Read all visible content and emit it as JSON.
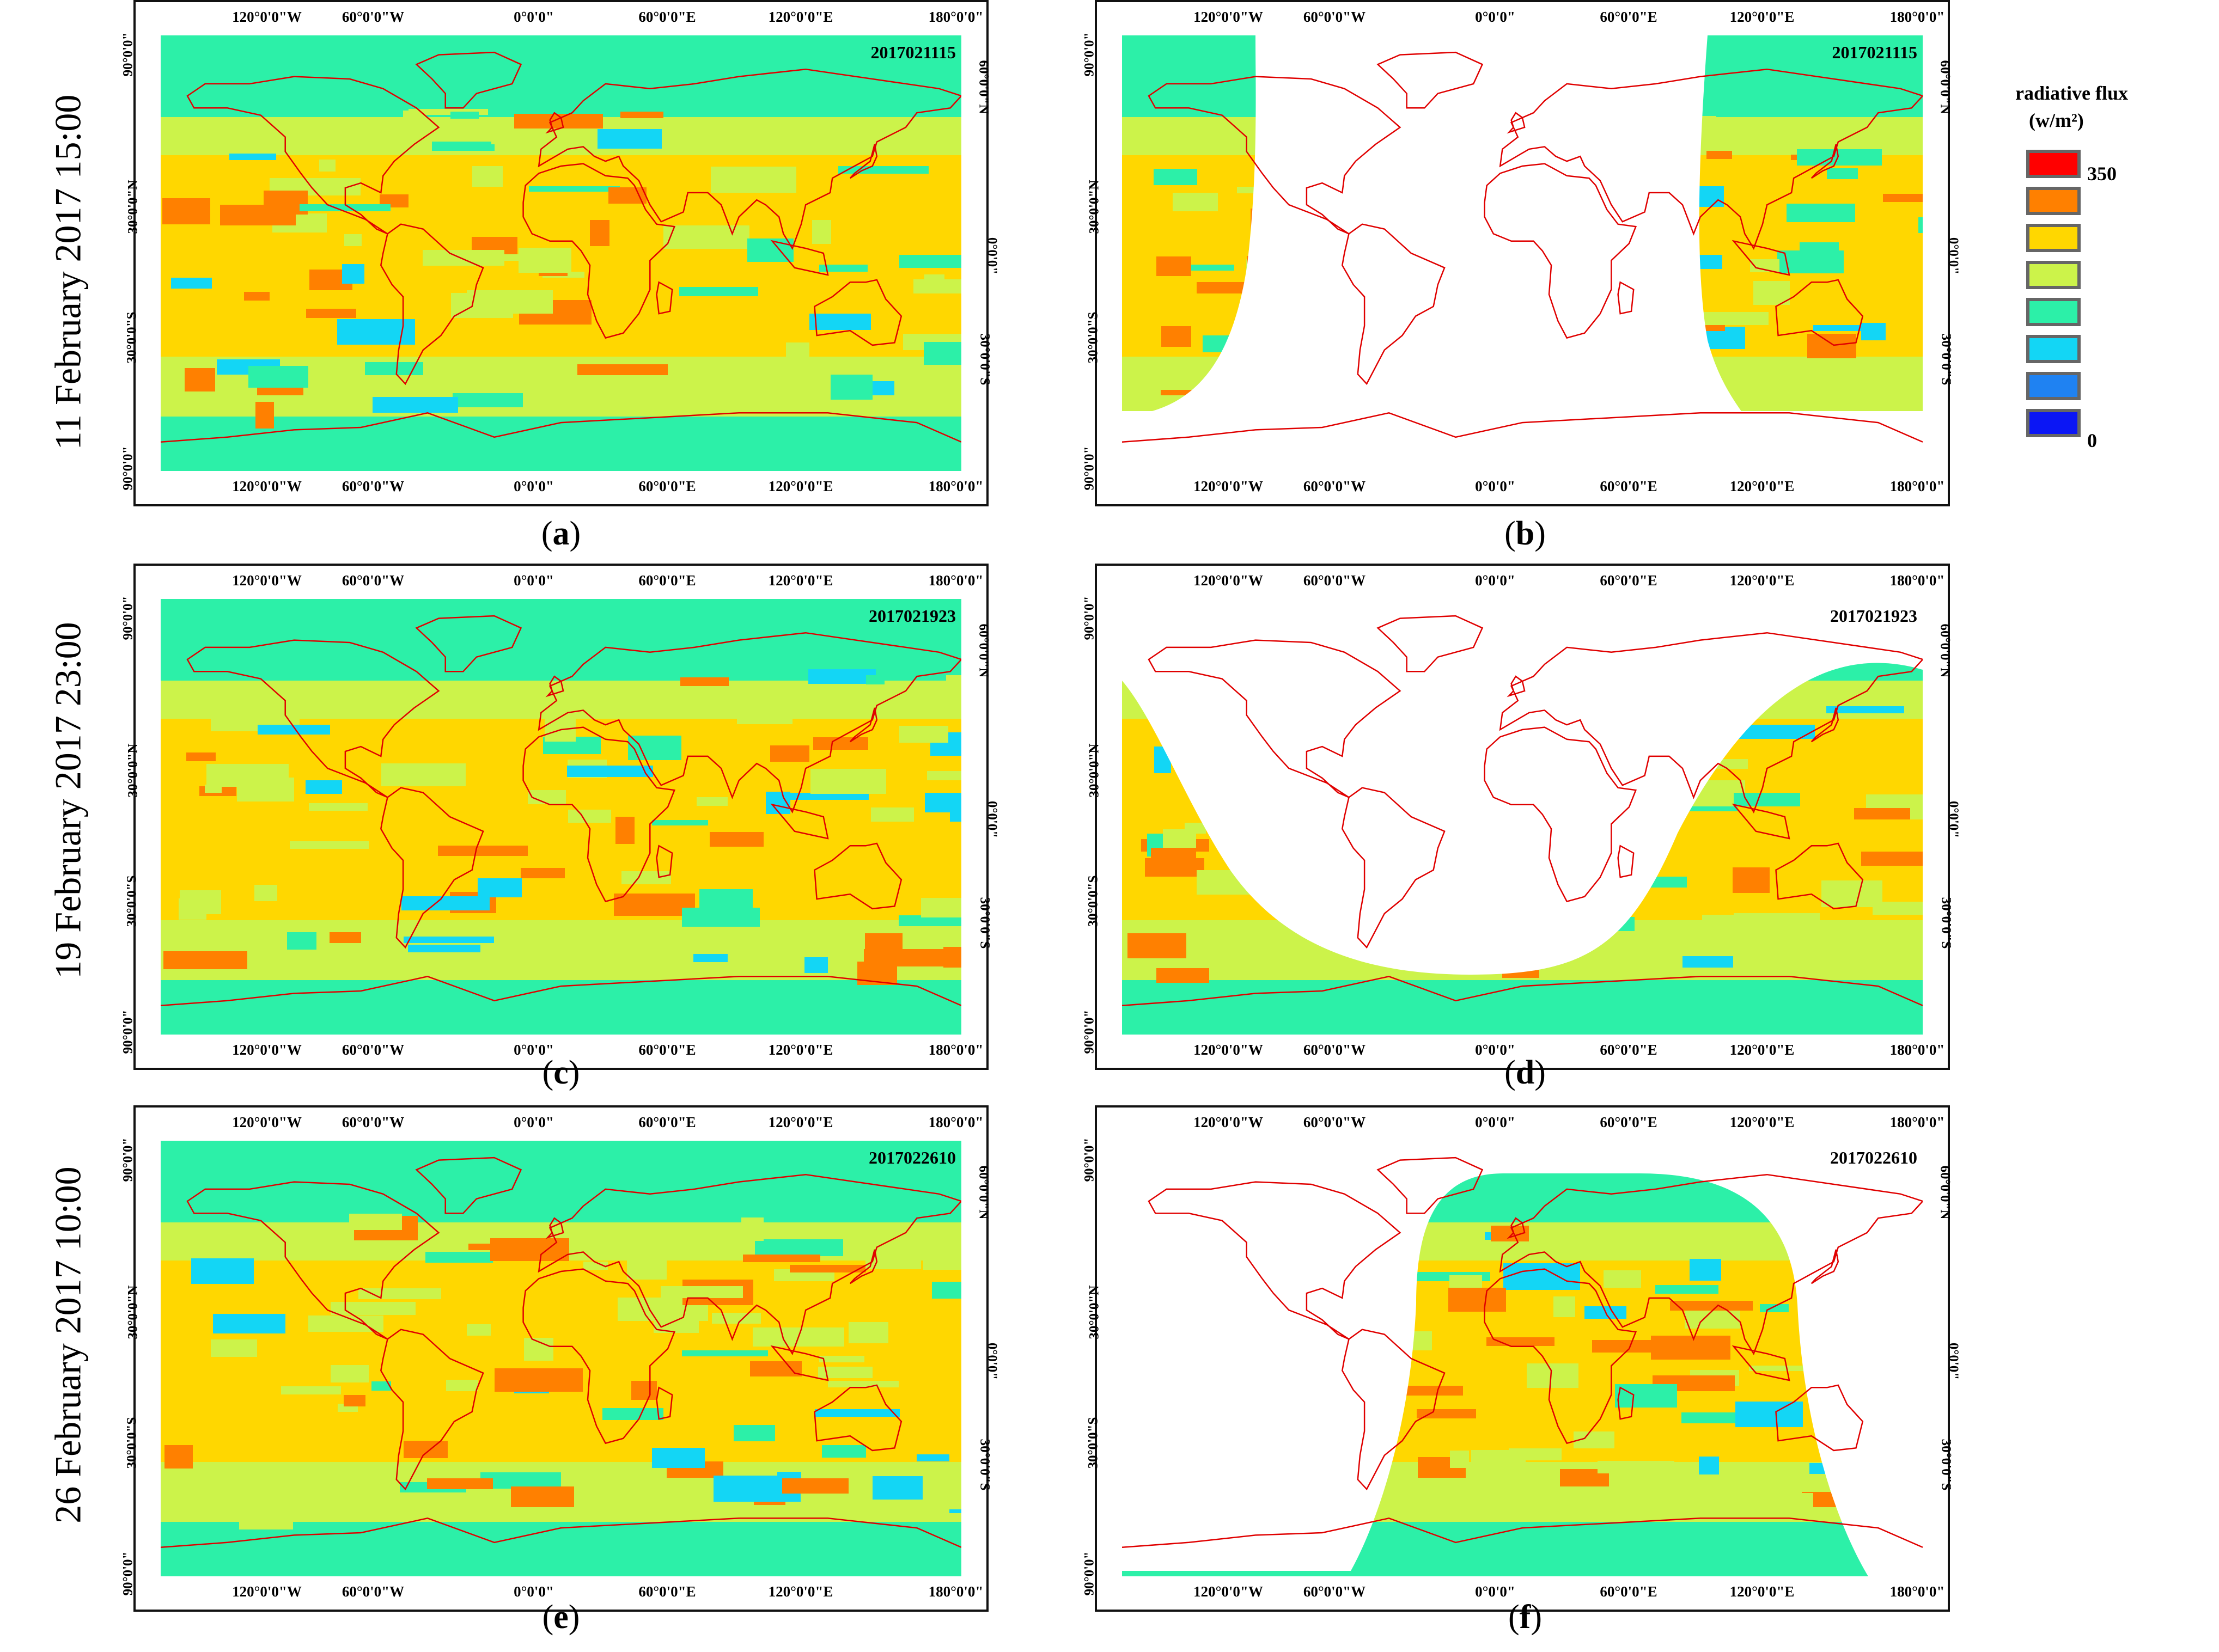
{
  "figure": {
    "rows": [
      {
        "label": "11 February 2017 15:00"
      },
      {
        "label": "19 February 2017 23:00"
      },
      {
        "label": "26 February 2017 10:00"
      }
    ],
    "panels": [
      {
        "letter": "a",
        "stamp": "2017021115",
        "daylight": "full"
      },
      {
        "letter": "b",
        "stamp": "2017021115",
        "daylight": "night-right"
      },
      {
        "letter": "c",
        "stamp": "2017021923",
        "daylight": "full"
      },
      {
        "letter": "d",
        "stamp": "2017021923",
        "daylight": "night-left"
      },
      {
        "letter": "e",
        "stamp": "2017022610",
        "daylight": "full"
      },
      {
        "letter": "f",
        "stamp": "2017022610",
        "daylight": "night-center"
      }
    ],
    "lon_ticks": [
      "120°0'0\"W",
      "60°0'0\"W",
      "0°0'0\"",
      "60°0'0\"E",
      "120°0'0\"E",
      "180°0'0\""
    ],
    "lat_ticks_left": [
      "90°0'0\"",
      "30°0'0\"N",
      "30°0'0\"S",
      "90°0'0\""
    ],
    "lat_ticks_right": [
      "60°0'0\"N",
      "0°0'0\"",
      "30°0'0\"S"
    ]
  },
  "legend": {
    "title": "radiative flux",
    "unit": "(w/m²)",
    "max_label": "350",
    "min_label": "0",
    "colors": [
      "#ff0000",
      "#ff8000",
      "#ffd700",
      "#ccf34a",
      "#2cf0a8",
      "#13d6f5",
      "#1f82f2",
      "#0b16f5"
    ]
  }
}
